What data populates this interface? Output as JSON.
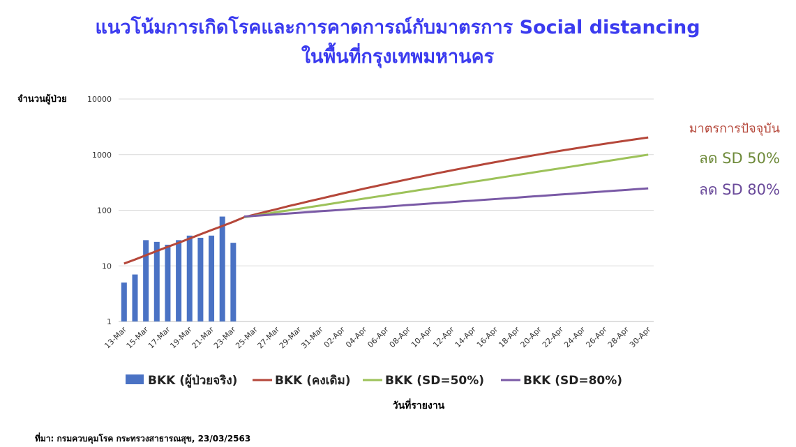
{
  "chart_data": {
    "type": "bar",
    "title": "แนวโน้มการเกิดโรคและการคาดการณ์กับมาตรการ Social distancing",
    "subtitle": "ในพื้นที่กรุงเทพมหานคร",
    "y_label": "จำนวนผู้ป่วย",
    "x_label": "วันที่รายงาน",
    "source": "ที่มา: กรมควบคุมโรค กระทรวงสาธารณสุข, 23/03/2563",
    "log_scale": true,
    "grid": true,
    "ylim": [
      1,
      10000
    ],
    "yticks": [
      1,
      10,
      100,
      1000,
      10000
    ],
    "categories": [
      "13-Mar",
      null,
      "15-Mar",
      null,
      "17-Mar",
      null,
      "19-Mar",
      null,
      "21-Mar",
      null,
      "23-Mar",
      null,
      "25-Mar",
      null,
      "27-Mar",
      null,
      "29-Mar",
      null,
      "31-Mar",
      null,
      "02-Apr",
      null,
      "04-Apr",
      null,
      "06-Apr",
      null,
      "08-Apr",
      null,
      "10-Apr",
      null,
      "12-Apr",
      null,
      "14-Apr",
      null,
      "16-Apr",
      null,
      "18-Apr",
      null,
      "20-Apr",
      null,
      "22-Apr",
      null,
      "24-Apr",
      null,
      "26-Apr",
      null,
      "28-Apr",
      null,
      "30-Apr"
    ],
    "series": [
      {
        "name": "BKK (ผู้ป่วยจริง)",
        "type": "bar",
        "color": "#4a72c4",
        "values": [
          5,
          7,
          29,
          27,
          24,
          29,
          35,
          32,
          35,
          77,
          26,
          null,
          null,
          null,
          null,
          null,
          null,
          null,
          null,
          null,
          null,
          null,
          null,
          null,
          null,
          null,
          null,
          null,
          null,
          null,
          null,
          null,
          null,
          null,
          null,
          null,
          null,
          null,
          null,
          null,
          null,
          null,
          null,
          null,
          null,
          null,
          null,
          null,
          null
        ]
      },
      {
        "name": "BKK (คงเดิม)",
        "type": "line",
        "color": "#b5473a",
        "values": [
          11,
          13,
          15.5,
          18.5,
          22,
          26,
          31,
          37,
          44,
          52,
          62,
          75,
          84,
          94,
          105,
          118,
          131,
          146,
          162,
          180,
          200,
          221,
          245,
          270,
          298,
          328,
          361,
          396,
          435,
          476,
          520,
          568,
          619,
          674,
          733,
          795,
          862,
          934,
          1009,
          1089,
          1175,
          1264,
          1359,
          1458,
          1563,
          1673,
          1788,
          1909,
          2034
        ]
      },
      {
        "name": "BKK (SD=50%)",
        "type": "line",
        "color": "#9dc25a",
        "values": [
          null,
          null,
          null,
          null,
          null,
          null,
          null,
          null,
          null,
          null,
          null,
          75,
          80,
          86,
          93,
          99,
          106,
          114,
          122,
          131,
          141,
          151,
          162,
          174,
          186,
          200,
          214,
          230,
          246,
          264,
          283,
          304,
          326,
          349,
          375,
          402,
          431,
          462,
          496,
          532,
          570,
          611,
          656,
          703,
          754,
          809,
          868,
          930,
          998
        ]
      },
      {
        "name": "BKK (SD=80%)",
        "type": "line",
        "color": "#7a5aa6",
        "values": [
          null,
          null,
          null,
          null,
          null,
          null,
          null,
          null,
          null,
          null,
          null,
          77,
          79.5,
          82,
          84.6,
          87.3,
          90.1,
          93,
          96,
          99,
          102,
          106,
          109,
          112,
          116,
          120,
          124,
          128,
          132,
          136,
          140,
          145,
          149,
          154,
          159,
          164,
          169,
          175,
          180,
          186,
          192,
          198,
          205,
          211,
          218,
          225,
          232,
          240,
          247
        ]
      }
    ],
    "annotations": [
      {
        "text": "มาตรการปัจจุบัน",
        "color": "#b5473a"
      },
      {
        "text": "ลด SD 50%",
        "color": "#6e8a3a"
      },
      {
        "text": "ลด SD 80%",
        "color": "#6a4a9a"
      }
    ]
  }
}
